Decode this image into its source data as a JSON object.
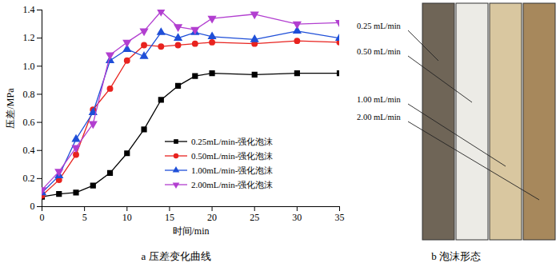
{
  "chart_data": {
    "type": "line",
    "title": "a 压差变化曲线",
    "x_label": "时间/min",
    "y_label": "压差/MPa",
    "x": [
      0,
      2,
      4,
      6,
      8,
      10,
      12,
      14,
      16,
      18,
      20,
      25,
      30,
      35
    ],
    "series": [
      {
        "name": "0.25mL/min-强化泡沫",
        "color": "#000000",
        "marker": "square",
        "values": [
          0.07,
          0.09,
          0.1,
          0.15,
          0.24,
          0.38,
          0.55,
          0.76,
          0.86,
          0.93,
          0.95,
          0.94,
          0.95,
          0.95
        ]
      },
      {
        "name": "0.50mL/min-强化泡沫",
        "color": "#e8231f",
        "marker": "circle",
        "values": [
          0.08,
          0.19,
          0.37,
          0.69,
          0.84,
          1.04,
          1.15,
          1.14,
          1.15,
          1.16,
          1.17,
          1.16,
          1.18,
          1.17
        ]
      },
      {
        "name": "1.00mL/min-强化泡沫",
        "color": "#1f4fd8",
        "marker": "triangle",
        "values": [
          0.1,
          0.22,
          0.48,
          0.67,
          1.04,
          1.12,
          1.07,
          1.24,
          1.2,
          1.24,
          1.21,
          1.19,
          1.25,
          1.2
        ]
      },
      {
        "name": "2.00mL/min-强化泡沫",
        "color": "#b23fd0",
        "marker": "triangle-down",
        "values": [
          0.12,
          0.25,
          0.42,
          0.59,
          1.08,
          1.17,
          1.25,
          1.39,
          1.28,
          1.26,
          1.34,
          1.37,
          1.3,
          1.31
        ]
      }
    ],
    "xlim": [
      0,
      35
    ],
    "xticks": [
      0,
      5,
      10,
      15,
      20,
      25,
      30,
      35
    ],
    "ylim": [
      0,
      1.4
    ],
    "yticks": [
      0,
      0.2,
      0.4,
      0.6,
      0.8,
      {
        "value": 1,
        "label": "1.0"
      },
      1.2,
      1.4
    ],
    "grid": false,
    "legend": "bottom-right"
  },
  "panel_b": {
    "caption": "b 泡沫形态",
    "labels": [
      "0.25 mL/min",
      "0.50 mL/min",
      "1.00 mL/min",
      "2.00 mL/min"
    ]
  }
}
